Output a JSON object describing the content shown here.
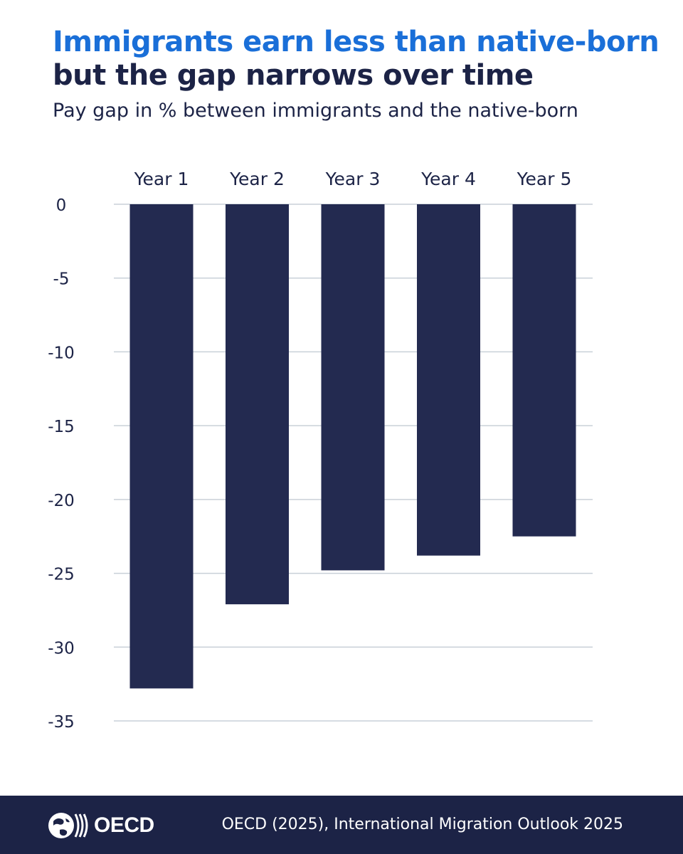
{
  "header": {
    "title_line_1": "Immigrants earn less than native-born",
    "title_line_2": "but the gap narrows over time",
    "subtitle": "Pay gap in % between immigrants and the native-born"
  },
  "footer": {
    "logo_text": "OECD",
    "source": "OECD (2025), International Migration Outlook 2025"
  },
  "chart_data": {
    "type": "bar",
    "categories": [
      "Year 1",
      "Year 2",
      "Year 3",
      "Year 4",
      "Year 5"
    ],
    "values": [
      -32.8,
      -27.1,
      -24.8,
      -23.8,
      -22.5
    ],
    "title": "Pay gap in % between immigrants and the native-born",
    "xlabel": "",
    "ylabel": "",
    "ylim": [
      -35,
      0
    ],
    "yticks": [
      0,
      -5,
      -10,
      -15,
      -20,
      -25,
      -30,
      -35
    ],
    "x_axis_position": "top",
    "grid": true,
    "legend": "none"
  },
  "colors": {
    "bar": "#232a50",
    "title_accent": "#1a6fd8",
    "title_dark": "#1c2346",
    "grid": "#c9d0d8",
    "footer_bg": "#1c2346"
  }
}
